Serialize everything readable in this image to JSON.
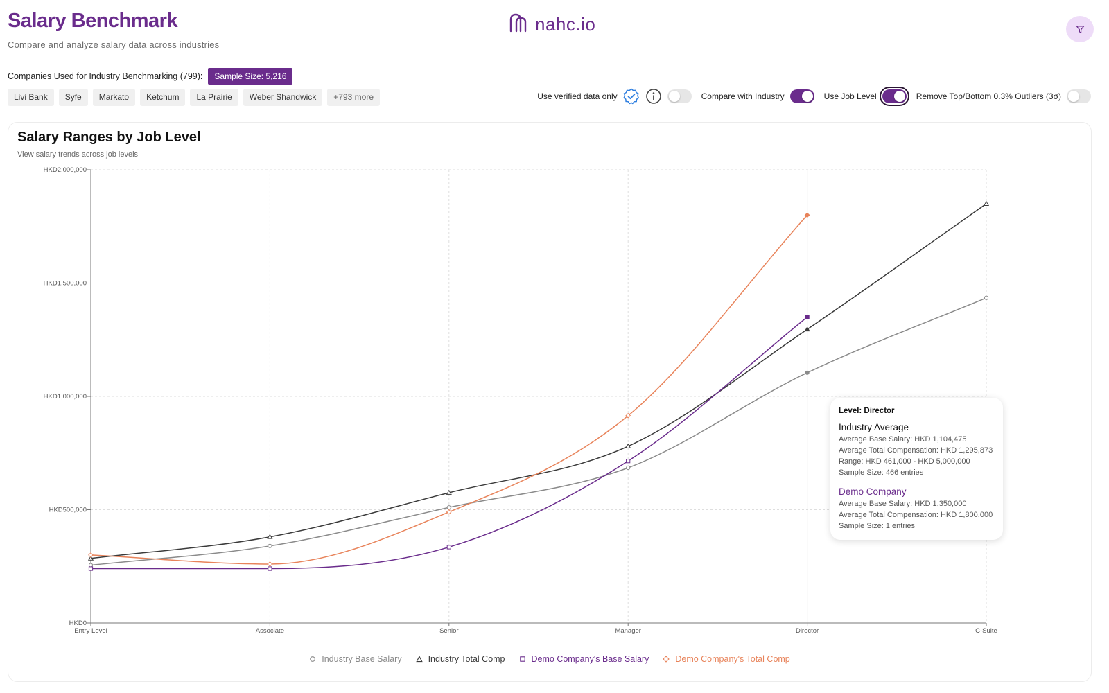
{
  "header": {
    "title": "Salary Benchmark",
    "subtitle": "Compare and analyze salary data across industries"
  },
  "logo": {
    "text": "nahc.io"
  },
  "companies": {
    "label": "Companies Used for Industry Benchmarking (799):",
    "sample_size": "Sample Size: 5,216",
    "chips": [
      "Livi Bank",
      "Syfe",
      "Markato",
      "Ketchum",
      "La Prairie",
      "Weber Shandwick"
    ],
    "more": "+793 more"
  },
  "toggles": {
    "verified": {
      "label": "Use verified data only",
      "on": false
    },
    "compare": {
      "label": "Compare with Industry",
      "on": true
    },
    "job_level": {
      "label": "Use Job Level",
      "on": true
    },
    "outliers": {
      "label": "Remove Top/Bottom 0.3% Outliers (3σ)",
      "on": false
    }
  },
  "card": {
    "title": "Salary Ranges by Job Level",
    "subtitle": "View salary trends across job levels"
  },
  "colors": {
    "accent": "#6a2c8c",
    "industry_base": "#8a8a8a",
    "industry_total": "#3a3a3a",
    "company_base": "#6a2c8c",
    "company_total": "#e8835a"
  },
  "chart_data": {
    "type": "line",
    "x": [
      "Entry Level",
      "Associate",
      "Senior",
      "Manager",
      "Director",
      "C-Suite"
    ],
    "y_ticks": [
      "HKD0",
      "HKD500,000",
      "HKD1,000,000",
      "HKD1,500,000",
      "HKD2,000,000"
    ],
    "ylim": [
      0,
      2000000
    ],
    "grid": true,
    "legend_position": "bottom",
    "series": [
      {
        "name": "Industry Base Salary",
        "marker": "circle",
        "color": "#8a8a8a",
        "values": [
          255000,
          340000,
          510000,
          685000,
          1104475,
          1435000
        ]
      },
      {
        "name": "Industry Total Comp",
        "marker": "triangle",
        "color": "#3a3a3a",
        "values": [
          285000,
          380000,
          575000,
          780000,
          1295873,
          1850000
        ]
      },
      {
        "name": "Demo Company's Base Salary",
        "marker": "square",
        "color": "#6a2c8c",
        "values": [
          240000,
          240000,
          335000,
          715000,
          1350000,
          null
        ]
      },
      {
        "name": "Demo Company's Total Comp",
        "marker": "diamond",
        "color": "#e8835a",
        "values": [
          300000,
          260000,
          490000,
          915000,
          1800000,
          null
        ]
      }
    ]
  },
  "tooltip": {
    "level": "Level: Director",
    "industry_title": "Industry Average",
    "industry_base": "Average Base Salary: HKD 1,104,475",
    "industry_total": "Average Total Compensation: HKD 1,295,873",
    "industry_range": "Range: HKD 461,000 - HKD 5,000,000",
    "industry_sample": "Sample Size: 466 entries",
    "company_title": "Demo Company",
    "company_base": "Average Base Salary: HKD 1,350,000",
    "company_total": "Average Total Compensation: HKD 1,800,000",
    "company_sample": "Sample Size: 1 entries"
  }
}
